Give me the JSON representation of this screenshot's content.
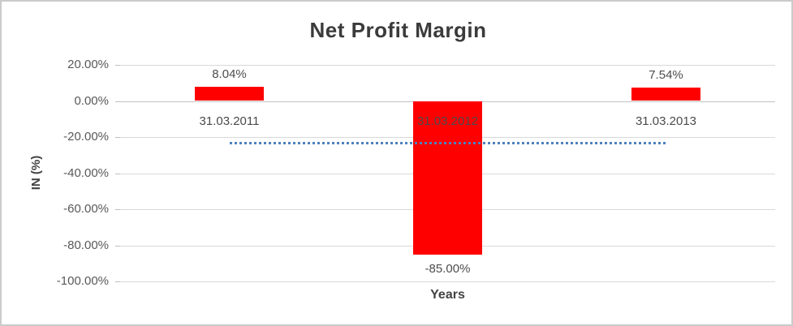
{
  "chart_data": {
    "type": "bar",
    "title": "Net Profit Margin",
    "xlabel": "Years",
    "ylabel": "IN (%)",
    "categories": [
      "31.03.2011",
      "31.03.2012",
      "31.03.2013"
    ],
    "values": [
      8.04,
      -85.0,
      7.54
    ],
    "data_labels": [
      "8.04%",
      "-85.00%",
      "7.54%"
    ],
    "ylim": [
      -100,
      20
    ],
    "yticks": [
      20,
      0,
      -20,
      -40,
      -60,
      -80,
      -100
    ],
    "ytick_labels": [
      "20.00%",
      "0.00%",
      "-20.00%",
      "-40.00%",
      "-60.00%",
      "-80.00%",
      "-100.00%"
    ],
    "grid": true,
    "legend": "none",
    "bar_color": "#ff0000",
    "trendline": {
      "type": "linear",
      "style": "dotted",
      "color": "#4f81bd",
      "y_value": -23.5
    }
  }
}
